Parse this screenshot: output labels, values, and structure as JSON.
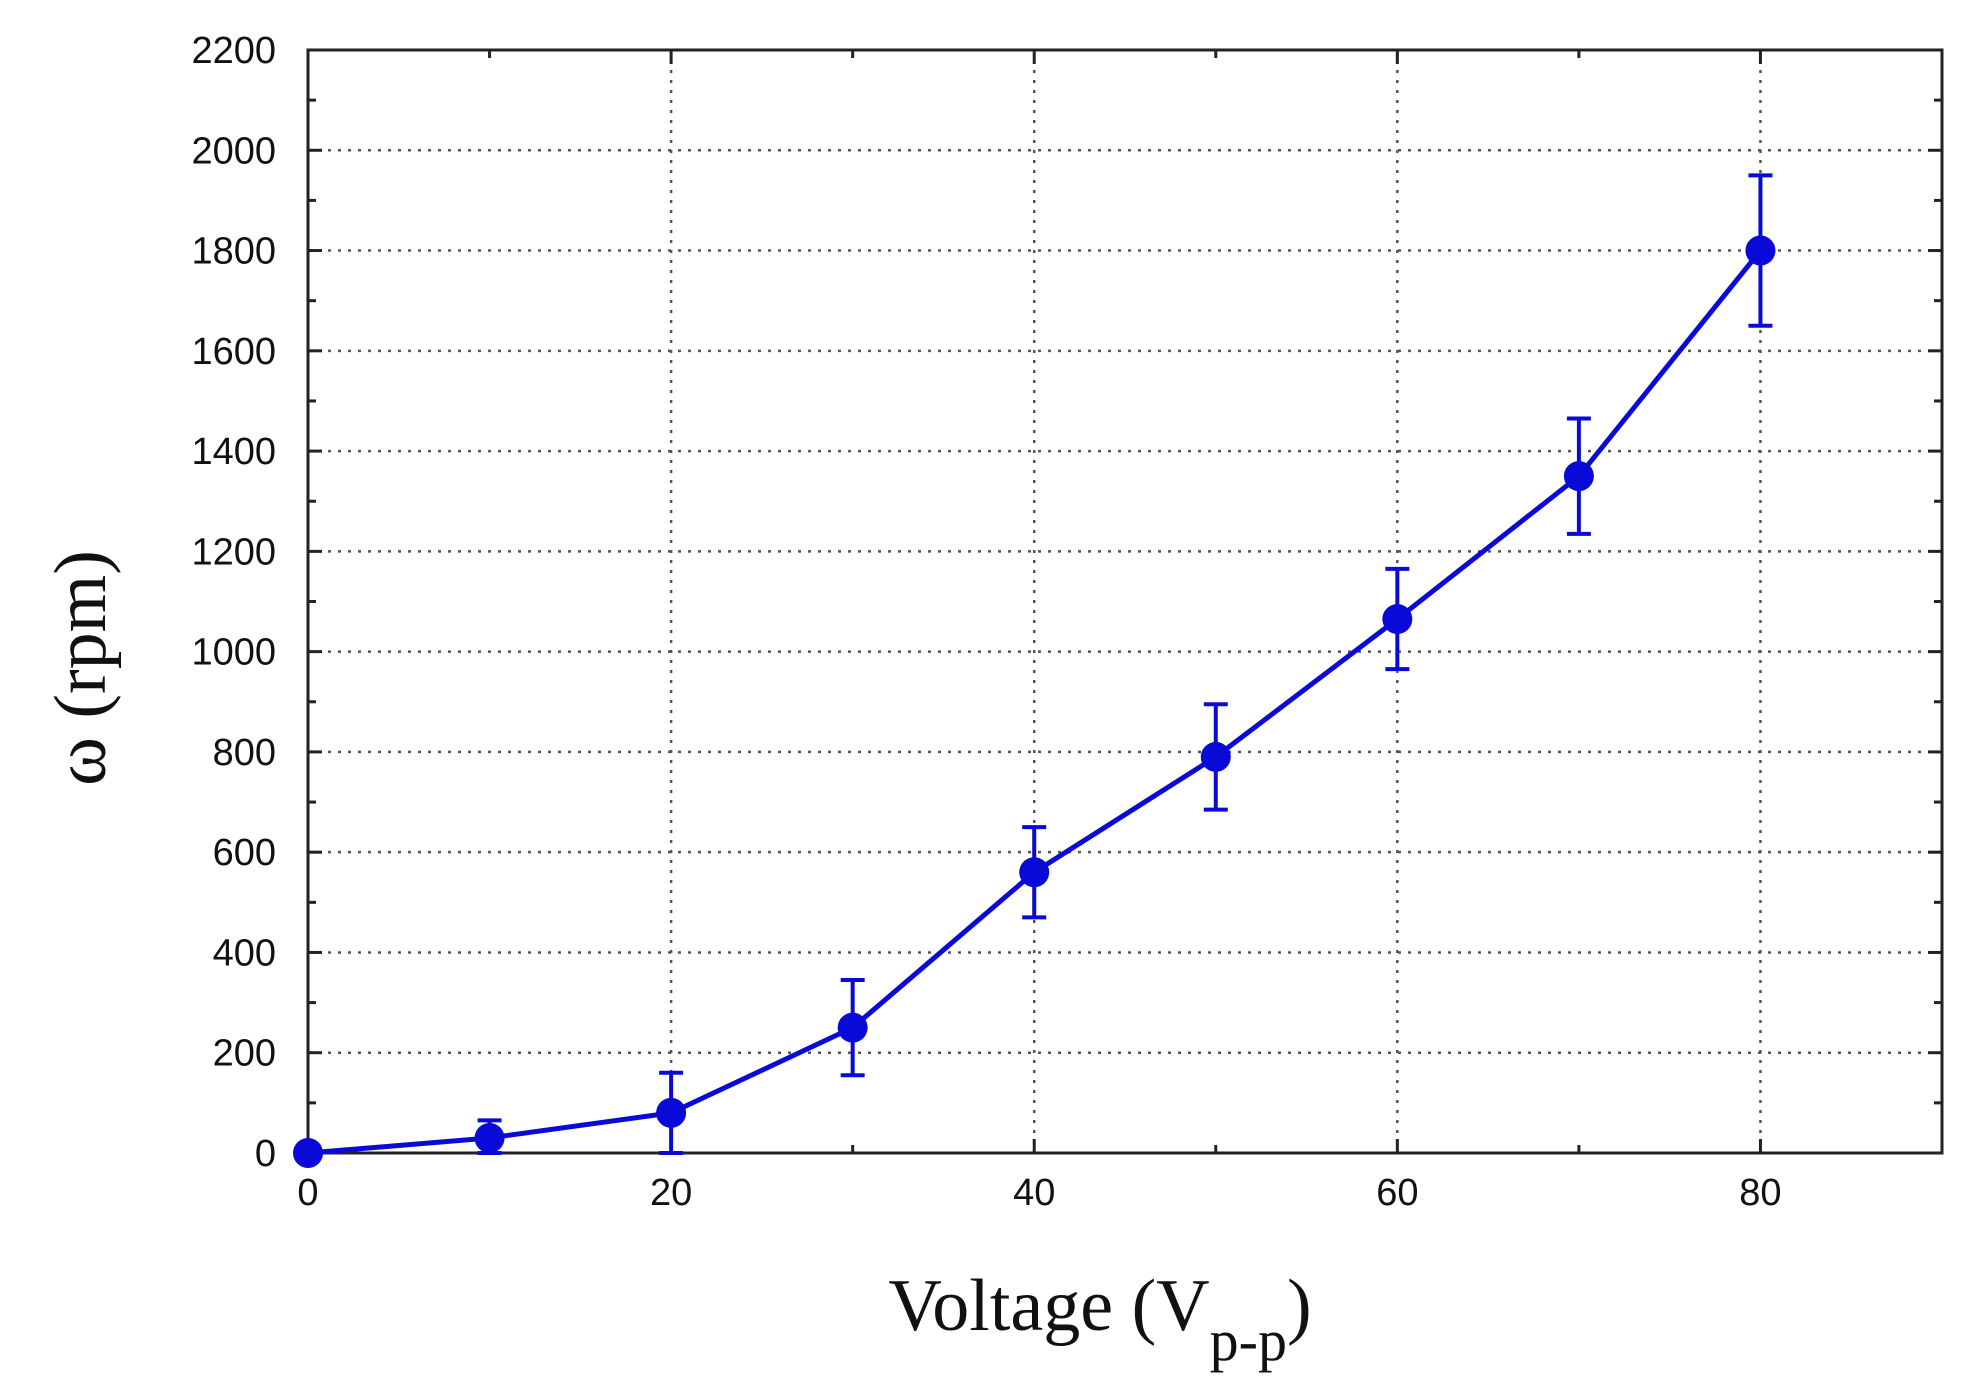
{
  "chart_data": {
    "type": "line",
    "title": "",
    "xlabel_main": "Voltage (V",
    "xlabel_sub": "p-p",
    "xlabel_close": ")",
    "ylabel": "ω (rpm)",
    "xlim": [
      0,
      90
    ],
    "ylim": [
      0,
      2200
    ],
    "x_ticks": [
      0,
      20,
      40,
      60,
      80
    ],
    "y_ticks": [
      0,
      200,
      400,
      600,
      800,
      1000,
      1200,
      1400,
      1600,
      1800,
      2000,
      2200
    ],
    "x_tick_labels": [
      "0",
      "20",
      "40",
      "60",
      "80"
    ],
    "y_tick_labels": [
      "0",
      "200",
      "400",
      "600",
      "800",
      "1000",
      "1200",
      "1400",
      "1600",
      "1800",
      "2000",
      "2200"
    ],
    "grid": true,
    "legend": "none",
    "series": [
      {
        "color": "#0a0ad8",
        "marker": "circle",
        "x": [
          0,
          10,
          20,
          30,
          40,
          50,
          60,
          70,
          80
        ],
        "y": [
          0,
          30,
          80,
          250,
          560,
          790,
          1065,
          1350,
          1800
        ],
        "error": [
          0,
          35,
          80,
          95,
          90,
          105,
          100,
          115,
          150
        ]
      }
    ]
  }
}
